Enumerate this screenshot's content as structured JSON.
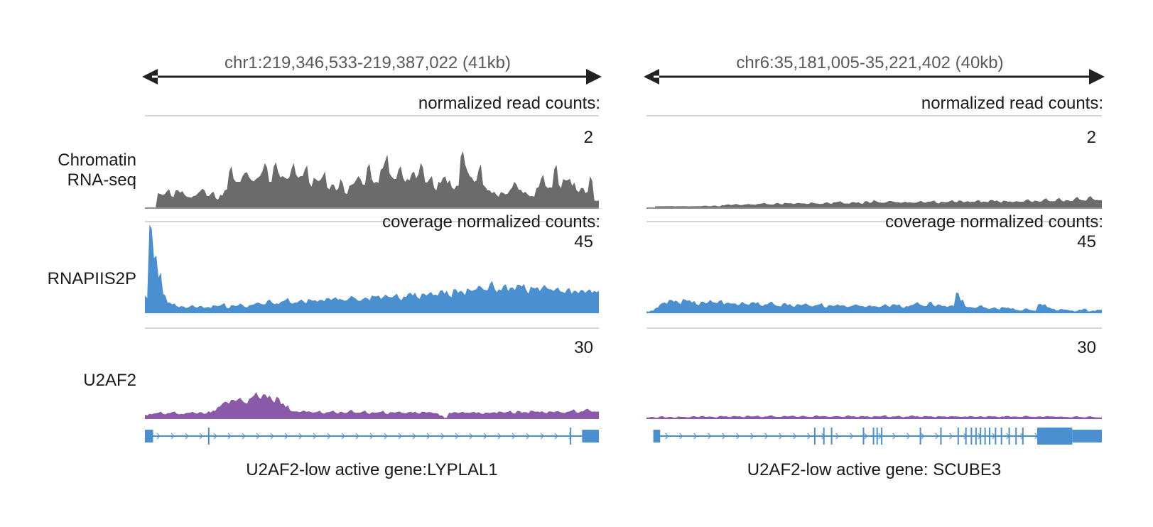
{
  "track_labels": {
    "chromatin": [
      "Chromatin",
      "RNA-seq"
    ],
    "rnapii": "RNAPIIS2P",
    "u2af2": "U2AF2"
  },
  "colors": {
    "chromatin": "#6b6b6b",
    "rnapii": "#4a90d0",
    "u2af2": "#8a5aa8",
    "gene": "#4a90d0",
    "arrow": "#222222",
    "rule": "#c8c8c8",
    "coord_text": "#5a5a5a"
  },
  "panels": [
    {
      "coordinates": "chr1:219,346,533-219,387,022 (41kb)",
      "unit_label_top": "normalized read counts:",
      "unit_label_mid": "coverage normalized counts:",
      "scales": {
        "chromatin": "2",
        "rnapii": "45",
        "u2af2": "30"
      },
      "gene_caption": "U2AF2-low active gene:LYPLAL1",
      "gene": {
        "strand": "+",
        "exons": [
          [
            0.0,
            0.018,
            "utr"
          ],
          [
            0.139,
            0.142,
            "cds"
          ],
          [
            0.936,
            0.939,
            "cds"
          ],
          [
            0.963,
            1.0,
            "utr"
          ]
        ]
      },
      "chromatin_profile": [
        0.0,
        0.25,
        0.22,
        0.28,
        0.2,
        0.3,
        0.26,
        0.22,
        0.18,
        0.2,
        0.25,
        0.33,
        0.2,
        0.25,
        0.16,
        0.22,
        0.3,
        0.63,
        0.5,
        0.45,
        0.55,
        0.62,
        0.48,
        0.5,
        0.56,
        0.78,
        0.45,
        0.72,
        0.62,
        0.55,
        0.5,
        0.68,
        0.58,
        0.55,
        0.67,
        0.43,
        0.52,
        0.46,
        0.55,
        0.35,
        0.4,
        0.3,
        0.5,
        0.25,
        0.38,
        0.42,
        0.55,
        0.4,
        0.7,
        0.5,
        0.45,
        0.66,
        0.81,
        0.6,
        0.5,
        0.66,
        0.53,
        0.5,
        0.6,
        0.51,
        0.78,
        0.44,
        0.5,
        0.35,
        0.45,
        0.52,
        0.42,
        0.35,
        0.38,
        0.9,
        0.75,
        0.55,
        0.45,
        0.66,
        0.4,
        0.3,
        0.25,
        0.22,
        0.27,
        0.23,
        0.3,
        0.45,
        0.31,
        0.25,
        0.23,
        0.2,
        0.34,
        0.5,
        0.38,
        0.35,
        0.68,
        0.4,
        0.5,
        0.48,
        0.38,
        0.3,
        0.34,
        0.25,
        0.55,
        0.12
      ],
      "rnapii_profile": [
        0.2,
        1.0,
        0.62,
        0.4,
        0.22,
        0.12,
        0.1,
        0.08,
        0.08,
        0.06,
        0.08,
        0.07,
        0.08,
        0.06,
        0.07,
        0.09,
        0.08,
        0.1,
        0.06,
        0.09,
        0.08,
        0.11,
        0.07,
        0.09,
        0.1,
        0.12,
        0.1,
        0.14,
        0.12,
        0.11,
        0.13,
        0.15,
        0.12,
        0.12,
        0.14,
        0.13,
        0.16,
        0.14,
        0.13,
        0.15,
        0.17,
        0.15,
        0.18,
        0.16,
        0.14,
        0.17,
        0.18,
        0.14,
        0.16,
        0.17,
        0.2,
        0.19,
        0.16,
        0.21,
        0.18,
        0.2,
        0.17,
        0.19,
        0.22,
        0.2,
        0.18,
        0.22,
        0.2,
        0.24,
        0.21,
        0.25,
        0.22,
        0.2,
        0.27,
        0.23,
        0.24,
        0.28,
        0.25,
        0.27,
        0.3,
        0.26,
        0.33,
        0.28,
        0.27,
        0.31,
        0.25,
        0.29,
        0.32,
        0.3,
        0.26,
        0.3,
        0.28,
        0.25,
        0.32,
        0.27,
        0.25,
        0.29,
        0.24,
        0.27,
        0.22,
        0.25,
        0.26,
        0.23,
        0.27,
        0.25
      ],
      "u2af2_profile": [
        0.1,
        0.12,
        0.13,
        0.15,
        0.12,
        0.14,
        0.16,
        0.13,
        0.12,
        0.14,
        0.15,
        0.14,
        0.16,
        0.12,
        0.18,
        0.2,
        0.28,
        0.35,
        0.4,
        0.45,
        0.42,
        0.5,
        0.38,
        0.48,
        0.55,
        0.52,
        0.58,
        0.5,
        0.45,
        0.52,
        0.35,
        0.28,
        0.2,
        0.18,
        0.16,
        0.2,
        0.18,
        0.15,
        0.17,
        0.14,
        0.16,
        0.18,
        0.15,
        0.17,
        0.14,
        0.19,
        0.16,
        0.15,
        0.18,
        0.14,
        0.16,
        0.15,
        0.17,
        0.13,
        0.16,
        0.15,
        0.18,
        0.14,
        0.16,
        0.15,
        0.14,
        0.17,
        0.15,
        0.16,
        0.14,
        0.08,
        0.03,
        0.15,
        0.16,
        0.14,
        0.17,
        0.15,
        0.16,
        0.14,
        0.13,
        0.15,
        0.14,
        0.16,
        0.18,
        0.15,
        0.17,
        0.14,
        0.19,
        0.15,
        0.16,
        0.2,
        0.17,
        0.16,
        0.15,
        0.18,
        0.16,
        0.19,
        0.15,
        0.17,
        0.2,
        0.16,
        0.18,
        0.22,
        0.2,
        0.18
      ]
    },
    {
      "coordinates": "chr6:35,181,005-35,221,402 (40kb)",
      "unit_label_top": "normalized read counts:",
      "unit_label_mid": "coverage normalized counts:",
      "scales": {
        "chromatin": "2",
        "rnapii": "45",
        "u2af2": "30"
      },
      "gene_caption": "U2AF2-low active gene: SCUBE3",
      "gene": {
        "strand": "+",
        "exons": [
          [
            0.015,
            0.03,
            "utr"
          ],
          [
            0.368,
            0.371,
            "cds"
          ],
          [
            0.388,
            0.391,
            "cds"
          ],
          [
            0.405,
            0.408,
            "cds"
          ],
          [
            0.475,
            0.478,
            "cds"
          ],
          [
            0.497,
            0.5,
            "cds"
          ],
          [
            0.505,
            0.508,
            "cds"
          ],
          [
            0.515,
            0.518,
            "cds"
          ],
          [
            0.6,
            0.603,
            "cds"
          ],
          [
            0.645,
            0.648,
            "cds"
          ],
          [
            0.683,
            0.686,
            "cds"
          ],
          [
            0.7,
            0.703,
            "cds"
          ],
          [
            0.712,
            0.715,
            "cds"
          ],
          [
            0.722,
            0.725,
            "cds"
          ],
          [
            0.732,
            0.735,
            "cds"
          ],
          [
            0.742,
            0.745,
            "cds"
          ],
          [
            0.752,
            0.755,
            "cds"
          ],
          [
            0.765,
            0.768,
            "cds"
          ],
          [
            0.778,
            0.781,
            "cds"
          ],
          [
            0.795,
            0.798,
            "cds"
          ],
          [
            0.81,
            0.813,
            "cds"
          ],
          [
            0.825,
            0.828,
            "cds"
          ],
          [
            0.858,
            0.935,
            "cds"
          ],
          [
            0.935,
            1.0,
            "utr"
          ]
        ]
      },
      "chromatin_profile": [
        0.02,
        0.02,
        0.02,
        0.02,
        0.02,
        0.02,
        0.02,
        0.02,
        0.02,
        0.02,
        0.02,
        0.03,
        0.02,
        0.03,
        0.02,
        0.04,
        0.05,
        0.04,
        0.06,
        0.04,
        0.05,
        0.06,
        0.05,
        0.06,
        0.07,
        0.06,
        0.05,
        0.07,
        0.06,
        0.08,
        0.07,
        0.06,
        0.08,
        0.07,
        0.06,
        0.09,
        0.07,
        0.06,
        0.08,
        0.07,
        0.09,
        0.1,
        0.08,
        0.07,
        0.09,
        0.08,
        0.07,
        0.11,
        0.08,
        0.13,
        0.09,
        0.08,
        0.1,
        0.11,
        0.09,
        0.08,
        0.1,
        0.09,
        0.08,
        0.1,
        0.09,
        0.1,
        0.11,
        0.08,
        0.1,
        0.09,
        0.11,
        0.1,
        0.12,
        0.09,
        0.11,
        0.1,
        0.12,
        0.09,
        0.1,
        0.13,
        0.11,
        0.1,
        0.12,
        0.1,
        0.09,
        0.11,
        0.1,
        0.13,
        0.11,
        0.12,
        0.1,
        0.14,
        0.12,
        0.11,
        0.15,
        0.12,
        0.13,
        0.11,
        0.16,
        0.14,
        0.12,
        0.18,
        0.15,
        0.13
      ],
      "rnapii_profile": [
        0.02,
        0.03,
        0.06,
        0.1,
        0.12,
        0.15,
        0.13,
        0.12,
        0.16,
        0.14,
        0.12,
        0.1,
        0.13,
        0.11,
        0.15,
        0.12,
        0.14,
        0.1,
        0.12,
        0.11,
        0.09,
        0.13,
        0.1,
        0.12,
        0.11,
        0.09,
        0.1,
        0.12,
        0.1,
        0.08,
        0.11,
        0.09,
        0.08,
        0.1,
        0.09,
        0.11,
        0.08,
        0.09,
        0.1,
        0.07,
        0.09,
        0.08,
        0.1,
        0.09,
        0.07,
        0.08,
        0.1,
        0.08,
        0.07,
        0.09,
        0.08,
        0.07,
        0.09,
        0.08,
        0.1,
        0.09,
        0.07,
        0.08,
        0.09,
        0.11,
        0.1,
        0.08,
        0.12,
        0.09,
        0.1,
        0.08,
        0.07,
        0.09,
        0.23,
        0.14,
        0.08,
        0.07,
        0.06,
        0.08,
        0.07,
        0.05,
        0.06,
        0.05,
        0.07,
        0.06,
        0.05,
        0.04,
        0.03,
        0.05,
        0.04,
        0.03,
        0.1,
        0.09,
        0.07,
        0.05,
        0.03,
        0.05,
        0.04,
        0.03,
        0.02,
        0.04,
        0.05,
        0.02,
        0.03,
        0.04
      ],
      "u2af2_profile": [
        0.04,
        0.05,
        0.03,
        0.06,
        0.04,
        0.05,
        0.03,
        0.06,
        0.05,
        0.04,
        0.06,
        0.05,
        0.07,
        0.05,
        0.06,
        0.04,
        0.07,
        0.06,
        0.05,
        0.07,
        0.06,
        0.05,
        0.08,
        0.06,
        0.07,
        0.05,
        0.06,
        0.08,
        0.06,
        0.05,
        0.07,
        0.06,
        0.08,
        0.05,
        0.07,
        0.06,
        0.05,
        0.08,
        0.06,
        0.07,
        0.05,
        0.06,
        0.07,
        0.05,
        0.08,
        0.06,
        0.05,
        0.07,
        0.06,
        0.05,
        0.07,
        0.06,
        0.08,
        0.05,
        0.06,
        0.07,
        0.05,
        0.06,
        0.08,
        0.06,
        0.05,
        0.07,
        0.06,
        0.05,
        0.07,
        0.06,
        0.05,
        0.07,
        0.06,
        0.05,
        0.06,
        0.07,
        0.05,
        0.06,
        0.05,
        0.07,
        0.06,
        0.05,
        0.06,
        0.07,
        0.05,
        0.06,
        0.05,
        0.07,
        0.06,
        0.05,
        0.06,
        0.05,
        0.07,
        0.06,
        0.05,
        0.06,
        0.05,
        0.04,
        0.06,
        0.05,
        0.04,
        0.06,
        0.05,
        0.04
      ]
    }
  ]
}
